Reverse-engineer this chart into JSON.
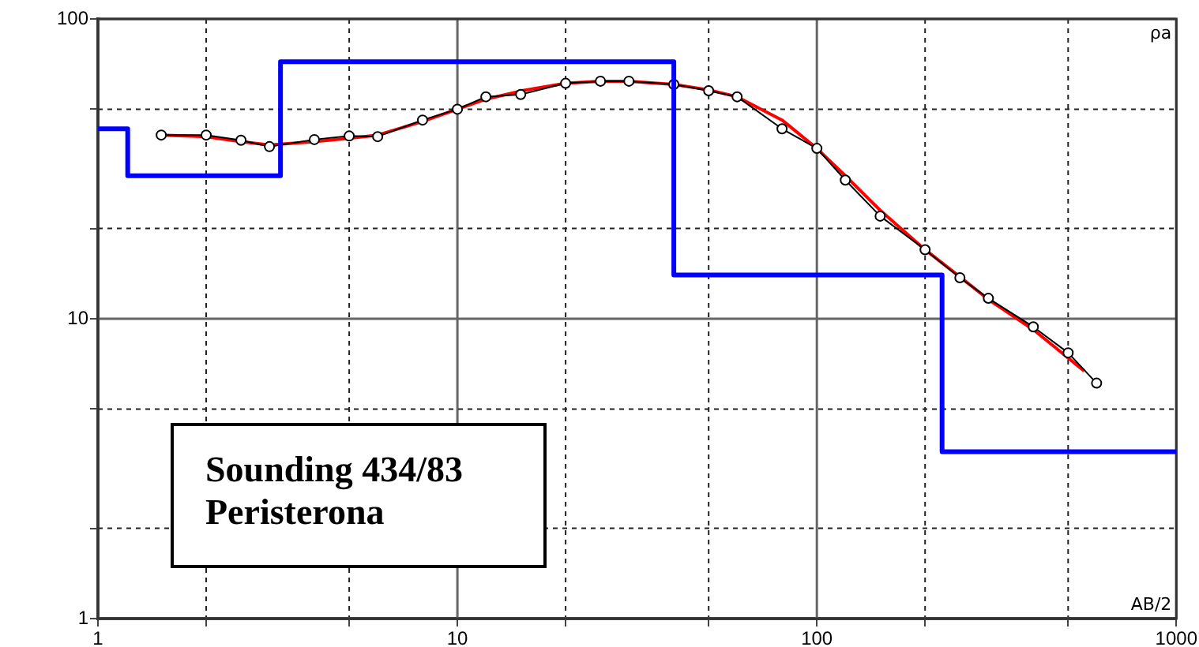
{
  "chart_data": {
    "type": "line",
    "xlabel": "AB/2",
    "ylabel": "ρa",
    "log": "xy",
    "grid": true,
    "legend": false,
    "xlim": [
      1,
      1000
    ],
    "ylim": [
      1,
      100
    ],
    "xticks": [
      1,
      {
        "value": 2,
        "label": null
      },
      {
        "value": 5,
        "label": null
      },
      10,
      {
        "value": 20,
        "label": null
      },
      {
        "value": 50,
        "label": null
      },
      100,
      {
        "value": 200,
        "label": null
      },
      {
        "value": 500,
        "label": null
      },
      1000
    ],
    "yticks": [
      1,
      {
        "value": 2,
        "label": null
      },
      {
        "value": 5,
        "label": null
      },
      10,
      {
        "value": 20,
        "label": null
      },
      {
        "value": 50,
        "label": null
      },
      100
    ],
    "annotations": [
      "Sounding 434/83",
      "Peristerona"
    ],
    "series": [
      {
        "type": "step",
        "color": "#0000ff",
        "marker": "none",
        "x": [
          1,
          1.21,
          3.22,
          40,
          223,
          1000
        ],
        "values": [
          43,
          30,
          72,
          14,
          3.6,
          3.6
        ]
      },
      {
        "color": "#000000",
        "marker": "circle",
        "x": [
          1.5,
          2,
          2.5,
          3,
          4,
          5,
          6,
          8,
          10,
          12,
          15,
          20,
          25,
          30,
          40,
          50,
          60,
          80,
          100,
          120,
          150,
          200,
          250,
          300,
          400,
          500,
          600
        ],
        "values": [
          41,
          41,
          39.4,
          37.5,
          39.6,
          40.7,
          40.5,
          46,
          50,
          55,
          56,
          61,
          62,
          62,
          60.5,
          57.6,
          55,
          43,
          37,
          29,
          22,
          17,
          13.7,
          11.7,
          9.4,
          7.7,
          6.1
        ]
      },
      {
        "color": "#ff0000",
        "marker": "none",
        "x": [
          1.5,
          2,
          2.5,
          3,
          4,
          5,
          6,
          8,
          10,
          12,
          15,
          20,
          25,
          30,
          40,
          50,
          60,
          80,
          100,
          120,
          150,
          200,
          250,
          300,
          400,
          554
        ],
        "values": [
          41,
          40.5,
          39,
          38,
          39,
          40,
          41,
          45.5,
          50,
          54,
          57.5,
          61,
          62,
          62,
          60.5,
          58,
          55,
          46,
          37,
          30,
          23,
          17,
          13.8,
          11.6,
          9.2,
          6.7
        ]
      }
    ]
  }
}
